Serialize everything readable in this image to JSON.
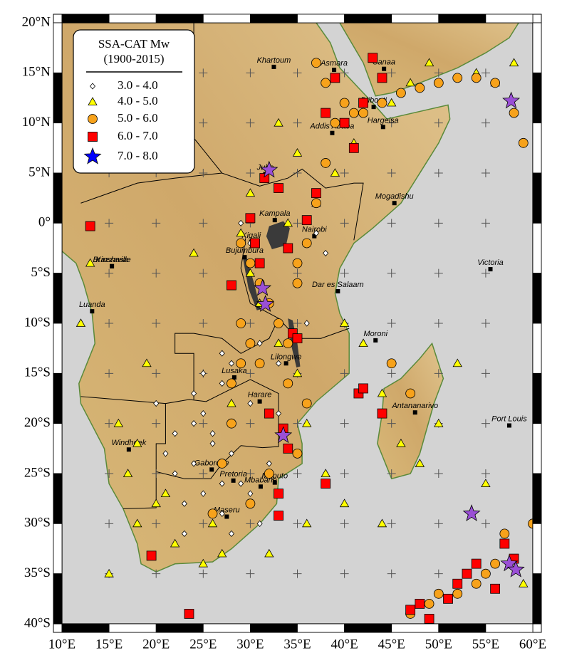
{
  "map": {
    "type": "map",
    "xlim": [
      10,
      60
    ],
    "ylim": [
      -40,
      20
    ],
    "xticks": [
      {
        "value": 10,
        "label": "10°E"
      },
      {
        "value": 15,
        "label": "15°E"
      },
      {
        "value": 20,
        "label": "20°E"
      },
      {
        "value": 25,
        "label": "25°E"
      },
      {
        "value": 30,
        "label": "30°E"
      },
      {
        "value": 35,
        "label": "35°E"
      },
      {
        "value": 40,
        "label": "40°E"
      },
      {
        "value": 45,
        "label": "45°E"
      },
      {
        "value": 50,
        "label": "50°E"
      },
      {
        "value": 55,
        "label": "55°E"
      },
      {
        "value": 60,
        "label": "60°E"
      }
    ],
    "yticks": [
      {
        "value": 20,
        "label": "20°N"
      },
      {
        "value": 15,
        "label": "15°N"
      },
      {
        "value": 10,
        "label": "10°N"
      },
      {
        "value": 5,
        "label": "5°N"
      },
      {
        "value": 0,
        "label": "0°"
      },
      {
        "value": -5,
        "label": "5°S"
      },
      {
        "value": -10,
        "label": "10°S"
      },
      {
        "value": -15,
        "label": "15°S"
      },
      {
        "value": -20,
        "label": "20°S"
      },
      {
        "value": -25,
        "label": "25°S"
      },
      {
        "value": -30,
        "label": "30°S"
      },
      {
        "value": -35,
        "label": "35°S"
      },
      {
        "value": -40,
        "label": "40°S"
      }
    ],
    "legend": {
      "title": "SSA-CAT Mw",
      "subtitle": "(1900-2015)",
      "corner": "upper left"
    },
    "series": [
      {
        "name": "3.0 - 4.0",
        "marker": "diamond",
        "color": "#ffffff",
        "lon": [
          25,
          27,
          28,
          26,
          24,
          22,
          23,
          29,
          30,
          27,
          26,
          28,
          25,
          21,
          24,
          30,
          31,
          29,
          27,
          33,
          34,
          36,
          35,
          38,
          37,
          30,
          29,
          32,
          27,
          26,
          28,
          24,
          22,
          20,
          31,
          33,
          28,
          25,
          23,
          36
        ],
        "lat": [
          -15,
          -16,
          -20,
          -22,
          -24,
          -25,
          -28,
          -26,
          -27,
          -29,
          -30,
          -31,
          -19,
          -23,
          -17,
          -18,
          -12,
          -10,
          -13,
          -14,
          -16,
          -10,
          -6,
          -3,
          -1,
          -2,
          0,
          -24,
          -26,
          -21,
          -23,
          -20,
          -21,
          -18,
          -30,
          -19,
          -14,
          -27,
          -31,
          -20
        ]
      },
      {
        "name": "4.0 - 5.0",
        "marker": "triangle",
        "color": "#ffff00",
        "lon": [
          16,
          17,
          18,
          15,
          20,
          22,
          25,
          27,
          28,
          30,
          31,
          33,
          35,
          36,
          38,
          40,
          42,
          44,
          46,
          48,
          50,
          52,
          55,
          57,
          59,
          13,
          12,
          19,
          24,
          29,
          34,
          37,
          39,
          41,
          45,
          47,
          49,
          18,
          21,
          26,
          32,
          36,
          40,
          44,
          54,
          56,
          58,
          33,
          35,
          30
        ],
        "lat": [
          -20,
          -25,
          -30,
          -35,
          -28,
          -32,
          -34,
          -33,
          -18,
          -5,
          -8,
          -12,
          -15,
          -20,
          -25,
          -10,
          -12,
          -17,
          -22,
          -24,
          -20,
          -14,
          -26,
          -32,
          -36,
          -4,
          -10,
          -14,
          -3,
          -1,
          0,
          2,
          5,
          8,
          12,
          14,
          16,
          -22,
          -27,
          -30,
          -33,
          -30,
          -28,
          -30,
          15,
          14,
          16,
          10,
          7,
          3
        ]
      },
      {
        "name": "5.0 - 6.0",
        "marker": "circle",
        "color": "#f7a21b",
        "lon": [
          29,
          30,
          31,
          32,
          33,
          34,
          35,
          36,
          37,
          38,
          39,
          40,
          41,
          42,
          44,
          46,
          48,
          50,
          52,
          54,
          56,
          58,
          59,
          30,
          29,
          28,
          27,
          26,
          35,
          36,
          34,
          28,
          30,
          32,
          47,
          49,
          50,
          52,
          54,
          56,
          45,
          47,
          60,
          57,
          55,
          38,
          37,
          35,
          29,
          31
        ],
        "lat": [
          -2,
          -4,
          -6,
          -8,
          -10,
          -12,
          -4,
          -2,
          2,
          6,
          10,
          12,
          11,
          11,
          12,
          13,
          13.5,
          14,
          14.5,
          14.5,
          14,
          11,
          8,
          -12,
          -14,
          -20,
          -24,
          -29,
          -23,
          -18,
          -16,
          -16,
          -28,
          -25,
          -39,
          -38,
          -37,
          -37,
          -36,
          -34,
          -14,
          -17,
          -30,
          -31,
          -35,
          14,
          16,
          -6,
          -10,
          -14
        ]
      },
      {
        "name": "6.0 - 7.0",
        "marker": "square",
        "color": "#ff0000",
        "lon": [
          13,
          30,
          30.5,
          31,
          31.5,
          33,
          34,
          34.5,
          35,
          36,
          37,
          38,
          39,
          40,
          41,
          42,
          43,
          44,
          28,
          33,
          34,
          33,
          33.5,
          32,
          19.5,
          23.5,
          38,
          41.5,
          42,
          44,
          48,
          49,
          51,
          52,
          53,
          54,
          56,
          57,
          58,
          47
        ],
        "lat": [
          -0.3,
          0.5,
          -2,
          -4,
          4.5,
          3.5,
          -2.5,
          -11,
          -11.5,
          0.3,
          3,
          11,
          14.5,
          10,
          7.5,
          12,
          16.5,
          14.5,
          -6.2,
          -27,
          -22.5,
          -29.2,
          -20.5,
          -19,
          -33.2,
          -39,
          -26,
          -17,
          -16.5,
          -19,
          -38,
          -39.5,
          -37.5,
          -36,
          -35,
          -34,
          -36.5,
          -32,
          -33.5,
          -38.6
        ]
      },
      {
        "name": "7.0 - 8.0",
        "marker": "star",
        "color": "#0000ff",
        "map_color": "#9a4fd6",
        "lon": [
          32,
          31.3,
          31.6,
          33.5,
          57.7,
          53.5,
          57.5,
          58.2
        ],
        "lat": [
          5.3,
          -6.5,
          -8.1,
          -21.2,
          12.2,
          -29,
          -34,
          -34.6
        ]
      }
    ],
    "cities": [
      {
        "name": "Khartoum",
        "lon": 32.5,
        "lat": 15.6
      },
      {
        "name": "Asmara",
        "lon": 38.9,
        "lat": 15.3
      },
      {
        "name": "Sanaa",
        "lon": 44.2,
        "lat": 15.4
      },
      {
        "name": "Djibouti",
        "lon": 43.1,
        "lat": 11.6
      },
      {
        "name": "Addis Ababa",
        "lon": 38.7,
        "lat": 9.0
      },
      {
        "name": "Hargeisa",
        "lon": 44.1,
        "lat": 9.6
      },
      {
        "name": "Juba",
        "lon": 31.6,
        "lat": 4.9
      },
      {
        "name": "Mogadishu",
        "lon": 45.3,
        "lat": 2.0
      },
      {
        "name": "Kampala",
        "lon": 32.6,
        "lat": 0.3
      },
      {
        "name": "Nairobi",
        "lon": 36.8,
        "lat": -1.3
      },
      {
        "name": "Kigali",
        "lon": 30.1,
        "lat": -1.9
      },
      {
        "name": "Bujumbura",
        "lon": 29.4,
        "lat": -3.4
      },
      {
        "name": "Kinshasa",
        "lon": 15.3,
        "lat": -4.3
      },
      {
        "name": "Brazzaville",
        "lon": 15.3,
        "lat": -4.3
      },
      {
        "name": "Victoria",
        "lon": 55.5,
        "lat": -4.6
      },
      {
        "name": "Luanda",
        "lon": 13.2,
        "lat": -8.8
      },
      {
        "name": "Dar es Salaam",
        "lon": 39.3,
        "lat": -6.8
      },
      {
        "name": "Moroni",
        "lon": 43.3,
        "lat": -11.7
      },
      {
        "name": "Lilongwe",
        "lon": 33.8,
        "lat": -14.0
      },
      {
        "name": "Lusaka",
        "lon": 28.3,
        "lat": -15.4
      },
      {
        "name": "Harare",
        "lon": 31.0,
        "lat": -17.8
      },
      {
        "name": "Antananarivo",
        "lon": 47.5,
        "lat": -18.9
      },
      {
        "name": "Port Louis",
        "lon": 57.5,
        "lat": -20.2
      },
      {
        "name": "Windhoek",
        "lon": 17.1,
        "lat": -22.6
      },
      {
        "name": "Gaborone",
        "lon": 25.9,
        "lat": -24.6
      },
      {
        "name": "Pretoria",
        "lon": 28.2,
        "lat": -25.7
      },
      {
        "name": "Maputo",
        "lon": 32.6,
        "lat": -25.9
      },
      {
        "name": "Mbabane",
        "lon": 31.1,
        "lat": -26.3
      },
      {
        "name": "Maseru",
        "lon": 27.5,
        "lat": -29.3
      }
    ]
  }
}
